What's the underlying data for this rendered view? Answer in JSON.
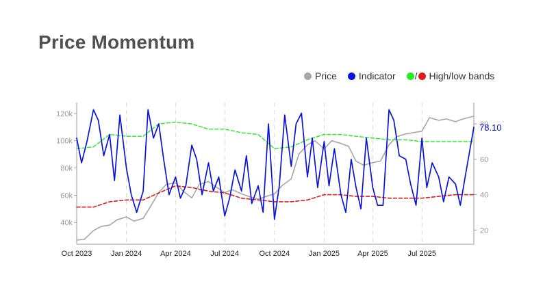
{
  "title": "Price Momentum",
  "legend": {
    "price": "Price",
    "indicator": "Indicator",
    "bands_sep": "/",
    "bands": "High/low bands"
  },
  "colors": {
    "price": "#a6a6a6",
    "indicator": "#0a12e0",
    "high_band": "#22ee22",
    "low_band": "#e41a1c",
    "axis": "#9a9a9a",
    "grid": "#d9d9d9",
    "last_value": "#0a12e0"
  },
  "chart_data": {
    "type": "line",
    "title": "Price Momentum",
    "x_type": "date",
    "x_ticks": [
      "Oct 2023",
      "Jan 2024",
      "Apr 2024",
      "Jul 2024",
      "Oct 2024",
      "Jan 2025",
      "Apr 2025",
      "Jul 2025"
    ],
    "x_tick_dates": [
      "2023-10-01",
      "2024-01-01",
      "2024-04-01",
      "2024-07-01",
      "2024-10-01",
      "2025-01-01",
      "2025-04-01",
      "2025-07-01"
    ],
    "x_range": [
      "2023-10-01",
      "2025-10-05"
    ],
    "y_left": {
      "ticks": [
        40000,
        60000,
        80000,
        100000,
        120000
      ],
      "tick_labels": [
        "40k",
        "60k",
        "80k",
        "100k",
        "120k"
      ],
      "range": [
        24000,
        128000
      ]
    },
    "y_right": {
      "ticks": [
        20,
        40,
        60,
        80
      ],
      "tick_labels": [
        "20",
        "40",
        "60",
        "80"
      ],
      "range": [
        12,
        92
      ]
    },
    "grid": "vertical dashed at month ticks",
    "legend_position": "top-right",
    "last_value_label": "78.10",
    "series": [
      {
        "name": "Price",
        "axis": "left",
        "x": [
          "2023-10-01",
          "2023-10-15",
          "2023-11-01",
          "2023-11-15",
          "2023-12-01",
          "2023-12-15",
          "2024-01-01",
          "2024-01-15",
          "2024-02-01",
          "2024-02-15",
          "2024-03-01",
          "2024-03-15",
          "2024-04-01",
          "2024-04-15",
          "2024-05-01",
          "2024-05-15",
          "2024-06-01",
          "2024-06-15",
          "2024-07-01",
          "2024-07-15",
          "2024-08-01",
          "2024-08-15",
          "2024-09-01",
          "2024-09-15",
          "2024-10-01",
          "2024-10-15",
          "2024-11-01",
          "2024-11-15",
          "2024-12-01",
          "2024-12-15",
          "2025-01-01",
          "2025-01-15",
          "2025-02-01",
          "2025-02-15",
          "2025-03-01",
          "2025-03-15",
          "2025-04-01",
          "2025-04-15",
          "2025-05-01",
          "2025-05-15",
          "2025-06-01",
          "2025-06-15",
          "2025-07-01",
          "2025-07-15",
          "2025-08-01",
          "2025-08-15",
          "2025-09-01",
          "2025-09-15",
          "2025-10-05"
        ],
        "values": [
          27000,
          27500,
          34000,
          37000,
          38000,
          42000,
          44000,
          41000,
          43000,
          52000,
          62000,
          68000,
          69000,
          63000,
          58000,
          68000,
          70000,
          66000,
          62000,
          64000,
          61000,
          59000,
          57000,
          59000,
          61000,
          67000,
          72000,
          90000,
          97000,
          100000,
          94000,
          100000,
          98000,
          96000,
          85000,
          82000,
          84000,
          85000,
          97000,
          103000,
          105000,
          106000,
          107000,
          117000,
          115000,
          116000,
          114000,
          116000,
          118000
        ]
      },
      {
        "name": "Indicator",
        "axis": "right",
        "x": [
          "2023-10-01",
          "2023-10-10",
          "2023-10-20",
          "2023-11-01",
          "2023-11-10",
          "2023-11-20",
          "2023-12-01",
          "2023-12-10",
          "2023-12-20",
          "2024-01-01",
          "2024-01-10",
          "2024-01-20",
          "2024-02-01",
          "2024-02-10",
          "2024-02-20",
          "2024-03-01",
          "2024-03-10",
          "2024-03-20",
          "2024-04-01",
          "2024-04-10",
          "2024-04-20",
          "2024-05-01",
          "2024-05-10",
          "2024-05-20",
          "2024-06-01",
          "2024-06-10",
          "2024-06-20",
          "2024-07-01",
          "2024-07-10",
          "2024-07-20",
          "2024-08-01",
          "2024-08-10",
          "2024-08-20",
          "2024-09-01",
          "2024-09-10",
          "2024-09-20",
          "2024-10-01",
          "2024-10-10",
          "2024-10-20",
          "2024-11-01",
          "2024-11-10",
          "2024-11-20",
          "2024-12-01",
          "2024-12-10",
          "2024-12-20",
          "2025-01-01",
          "2025-01-10",
          "2025-01-20",
          "2025-02-01",
          "2025-02-10",
          "2025-02-20",
          "2025-03-01",
          "2025-03-10",
          "2025-03-20",
          "2025-04-01",
          "2025-04-10",
          "2025-04-20",
          "2025-05-01",
          "2025-05-10",
          "2025-05-20",
          "2025-06-01",
          "2025-06-10",
          "2025-06-20",
          "2025-07-01",
          "2025-07-10",
          "2025-07-20",
          "2025-08-01",
          "2025-08-10",
          "2025-08-20",
          "2025-09-01",
          "2025-09-10",
          "2025-09-20",
          "2025-10-05"
        ],
        "values": [
          72,
          58,
          70,
          88,
          82,
          62,
          74,
          48,
          85,
          55,
          40,
          30,
          42,
          88,
          72,
          80,
          60,
          40,
          50,
          38,
          45,
          68,
          60,
          40,
          58,
          42,
          50,
          28,
          38,
          54,
          42,
          62,
          35,
          45,
          30,
          80,
          26,
          45,
          85,
          56,
          80,
          86,
          50,
          72,
          44,
          70,
          45,
          66,
          40,
          30,
          60,
          44,
          32,
          72,
          44,
          34,
          34,
          88,
          82,
          62,
          60,
          46,
          34,
          72,
          44,
          58,
          50,
          36,
          50,
          46,
          34,
          52,
          78.1
        ]
      },
      {
        "name": "High band",
        "axis": "right",
        "x": [
          "2023-10-01",
          "2023-11-01",
          "2023-12-01",
          "2024-01-01",
          "2024-02-01",
          "2024-03-01",
          "2024-04-01",
          "2024-05-01",
          "2024-06-01",
          "2024-07-01",
          "2024-08-01",
          "2024-09-01",
          "2024-10-01",
          "2024-11-01",
          "2024-12-01",
          "2025-01-01",
          "2025-02-01",
          "2025-03-01",
          "2025-04-01",
          "2025-05-01",
          "2025-06-01",
          "2025-07-01",
          "2025-08-01",
          "2025-09-01",
          "2025-10-05"
        ],
        "values": [
          66,
          67,
          74,
          73,
          73,
          80,
          81,
          80,
          77,
          77,
          75,
          74,
          66,
          67,
          71,
          74,
          74,
          73,
          72,
          71,
          71,
          70,
          70,
          70,
          70
        ]
      },
      {
        "name": "Low band",
        "axis": "right",
        "x": [
          "2023-10-01",
          "2023-11-01",
          "2023-12-01",
          "2024-01-01",
          "2024-02-01",
          "2024-03-01",
          "2024-04-01",
          "2024-05-01",
          "2024-06-01",
          "2024-07-01",
          "2024-08-01",
          "2024-09-01",
          "2024-10-01",
          "2024-11-01",
          "2024-12-01",
          "2025-01-01",
          "2025-02-01",
          "2025-03-01",
          "2025-04-01",
          "2025-05-01",
          "2025-06-01",
          "2025-07-01",
          "2025-08-01",
          "2025-09-01",
          "2025-10-05"
        ],
        "values": [
          33,
          33,
          36,
          37,
          37,
          41,
          45,
          44,
          42,
          41,
          38,
          37,
          36,
          36,
          37,
          40,
          40,
          39,
          39,
          38,
          38,
          38,
          39,
          40,
          40
        ]
      }
    ]
  }
}
